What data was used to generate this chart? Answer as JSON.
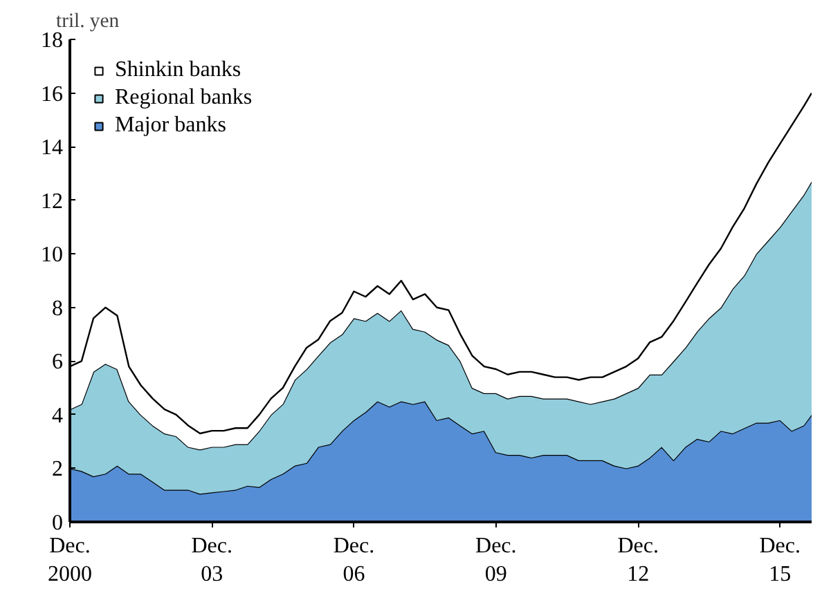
{
  "chart_data": {
    "type": "area",
    "stacked": true,
    "ylabel": "tril. yen",
    "x": [
      "2000-12",
      "2001-03",
      "2001-06",
      "2001-09",
      "2001-12",
      "2002-03",
      "2002-06",
      "2002-09",
      "2002-12",
      "2003-03",
      "2003-06",
      "2003-09",
      "2003-12",
      "2004-03",
      "2004-06",
      "2004-09",
      "2004-12",
      "2005-03",
      "2005-06",
      "2005-09",
      "2005-12",
      "2006-03",
      "2006-06",
      "2006-09",
      "2006-12",
      "2007-03",
      "2007-06",
      "2007-09",
      "2007-12",
      "2008-03",
      "2008-06",
      "2008-09",
      "2008-12",
      "2009-03",
      "2009-06",
      "2009-09",
      "2009-12",
      "2010-03",
      "2010-06",
      "2010-09",
      "2010-12",
      "2011-03",
      "2011-06",
      "2011-09",
      "2011-12",
      "2012-03",
      "2012-06",
      "2012-09",
      "2012-12",
      "2013-03",
      "2013-06",
      "2013-09",
      "2013-12",
      "2014-03",
      "2014-06",
      "2014-09",
      "2014-12",
      "2015-03",
      "2015-06",
      "2015-09",
      "2015-12",
      "2016-03",
      "2016-06",
      "2016-08"
    ],
    "series": [
      {
        "name": "Major banks",
        "color": "#558ed5",
        "values": [
          2.0,
          1.9,
          1.7,
          1.8,
          2.1,
          1.8,
          1.8,
          1.5,
          1.2,
          1.2,
          1.2,
          1.05,
          1.1,
          1.15,
          1.2,
          1.35,
          1.3,
          1.6,
          1.8,
          2.1,
          2.2,
          2.8,
          2.9,
          3.4,
          3.8,
          4.1,
          4.5,
          4.3,
          4.5,
          4.4,
          4.5,
          3.8,
          3.9,
          3.6,
          3.3,
          3.4,
          2.6,
          2.5,
          2.5,
          2.4,
          2.5,
          2.5,
          2.5,
          2.3,
          2.3,
          2.3,
          2.1,
          2.0,
          2.1,
          2.4,
          2.8,
          2.3,
          2.8,
          3.1,
          3.0,
          3.4,
          3.3,
          3.5,
          3.7,
          3.7,
          3.8,
          3.4,
          3.6,
          4.0
        ]
      },
      {
        "name": "Regional banks",
        "color": "#92cddc",
        "values": [
          2.2,
          2.5,
          3.9,
          4.1,
          3.6,
          2.7,
          2.2,
          2.1,
          2.1,
          2.0,
          1.6,
          1.65,
          1.7,
          1.65,
          1.7,
          1.55,
          2.1,
          2.4,
          2.6,
          3.2,
          3.5,
          3.4,
          3.8,
          3.6,
          3.8,
          3.4,
          3.3,
          3.2,
          3.4,
          2.8,
          2.6,
          3.0,
          2.7,
          2.4,
          1.7,
          1.4,
          2.2,
          2.1,
          2.2,
          2.3,
          2.1,
          2.1,
          2.1,
          2.2,
          2.1,
          2.2,
          2.5,
          2.8,
          2.9,
          3.1,
          2.7,
          3.7,
          3.7,
          4.0,
          4.6,
          4.6,
          5.4,
          5.7,
          6.3,
          6.8,
          7.2,
          8.2,
          8.6,
          8.7
        ]
      },
      {
        "name": "Shinkin banks",
        "color": "#ffffff",
        "values": [
          1.6,
          1.6,
          2.0,
          2.1,
          2.0,
          1.3,
          1.1,
          1.0,
          0.9,
          0.8,
          0.8,
          0.6,
          0.6,
          0.6,
          0.6,
          0.6,
          0.6,
          0.6,
          0.6,
          0.5,
          0.8,
          0.6,
          0.8,
          0.8,
          1.0,
          0.9,
          1.0,
          1.0,
          1.1,
          1.1,
          1.4,
          1.2,
          1.3,
          1.0,
          1.2,
          1.0,
          0.9,
          0.9,
          0.9,
          0.9,
          0.9,
          0.8,
          0.8,
          0.8,
          1.0,
          0.9,
          1.0,
          1.0,
          1.1,
          1.2,
          1.4,
          1.5,
          1.7,
          1.8,
          2.0,
          2.2,
          2.3,
          2.5,
          2.6,
          2.9,
          3.1,
          3.2,
          3.3,
          3.3
        ]
      }
    ],
    "xlim": [
      "2000-12",
      "2016-08"
    ],
    "xticks": [
      {
        "value": "2000-12",
        "label": "Dec.\n2000"
      },
      {
        "value": "2003-12",
        "label": "Dec.\n03"
      },
      {
        "value": "2006-12",
        "label": "Dec.\n06"
      },
      {
        "value": "2009-12",
        "label": "Dec.\n09"
      },
      {
        "value": "2012-12",
        "label": "Dec.\n12"
      },
      {
        "value": "2015-12",
        "label": "Dec.\n15"
      }
    ],
    "ylim": [
      0,
      18
    ],
    "yticks": [
      0,
      2,
      4,
      6,
      8,
      10,
      12,
      14,
      16,
      18
    ],
    "grid": false,
    "legend": "top left"
  }
}
